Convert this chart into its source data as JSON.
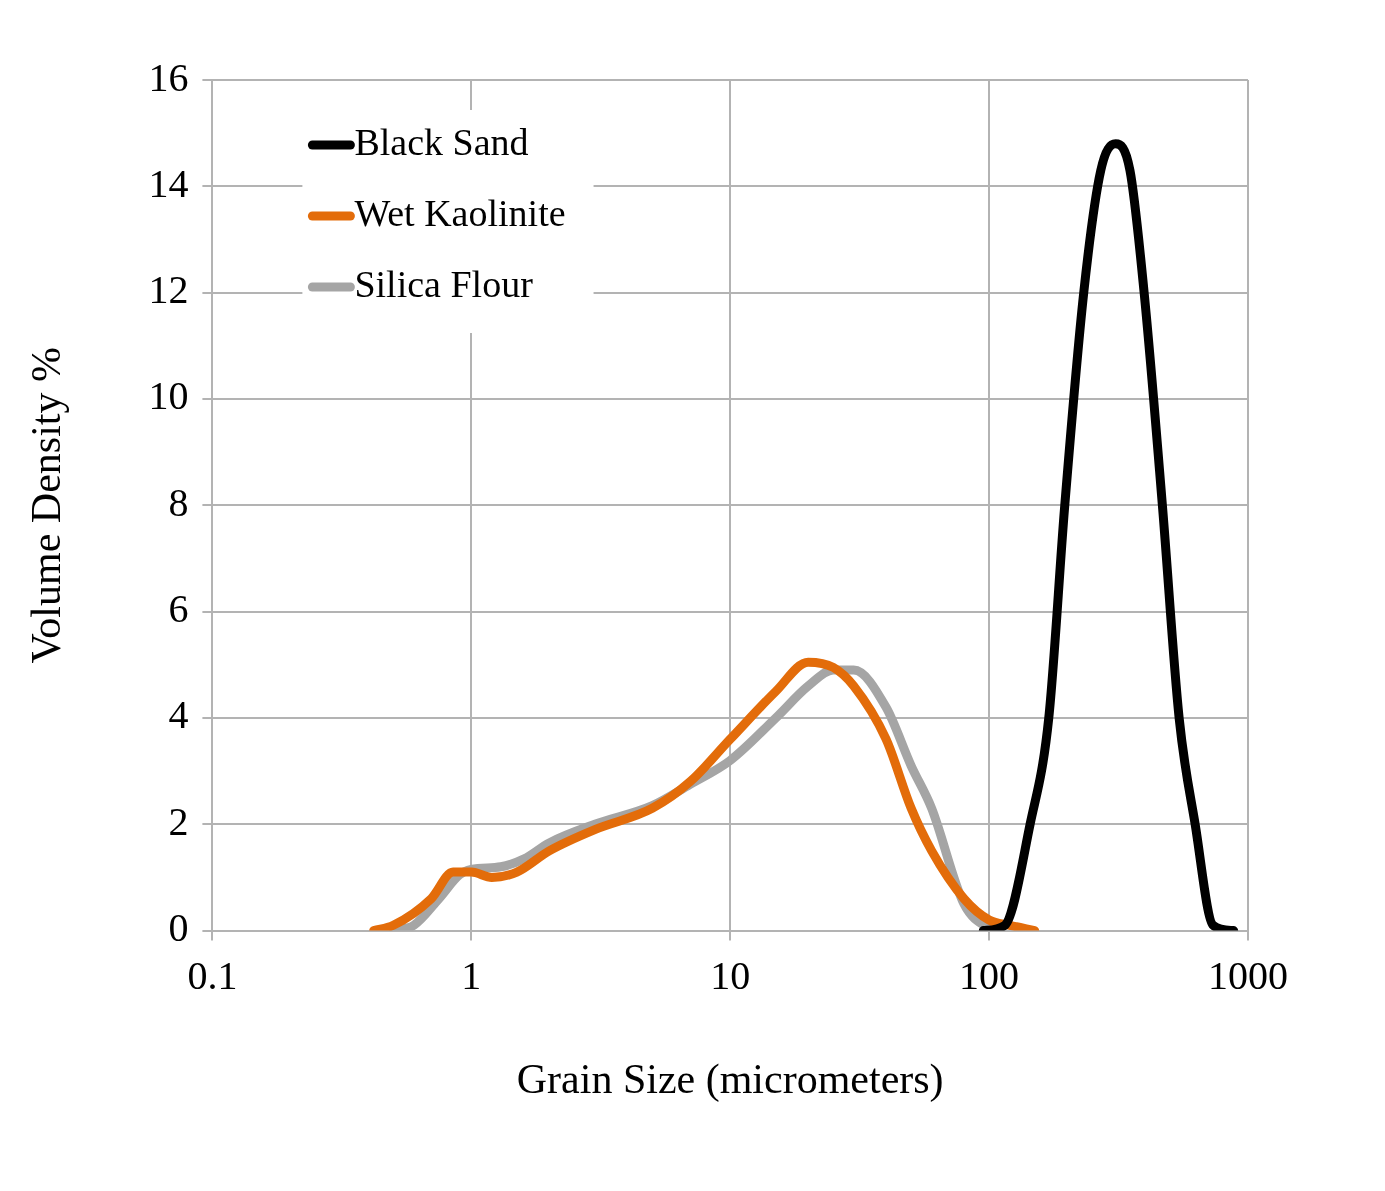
{
  "chart_data": {
    "type": "line",
    "xlabel": "Grain Size (micrometers)",
    "ylabel": "Volume Density %",
    "log": "x",
    "xlim": [
      0.1,
      1000
    ],
    "xticks": [
      0.1,
      1,
      10,
      100,
      1000
    ],
    "ylim": [
      0,
      16
    ],
    "yticks": [
      0,
      2,
      4,
      6,
      8,
      10,
      12,
      14,
      16
    ],
    "grid": true,
    "legend": "top left",
    "marker": "none",
    "line_style": "solid",
    "series": [
      {
        "name": "Black Sand",
        "color": "#000000",
        "x": [
          95,
          115,
          144,
          170,
          196,
          232,
          270,
          308,
          350,
          397,
          467,
          542,
          625,
          733,
          880
        ],
        "values": [
          0,
          0.1,
          2,
          4,
          8,
          12,
          14.3,
          14.8,
          14.3,
          12,
          8,
          4,
          2,
          0.1,
          0
        ]
      },
      {
        "name": "Wet Kaolinite",
        "color": "#e36c0a",
        "x": [
          0.42,
          0.5,
          0.7,
          0.85,
          1,
          1.2,
          1.5,
          2,
          3,
          5,
          7,
          10,
          15,
          20,
          25,
          30,
          40,
          50,
          60,
          80,
          100,
          120,
          150
        ],
        "values": [
          0,
          0.1,
          0.6,
          1.1,
          1.1,
          1,
          1.1,
          1.5,
          1.9,
          2.3,
          2.8,
          3.6,
          4.5,
          5.05,
          4.95,
          4.6,
          3.6,
          2.3,
          1.5,
          0.6,
          0.2,
          0.1,
          0
        ]
      },
      {
        "name": "Silica Flour",
        "color": "#a5a5a5",
        "x": [
          0.5,
          0.6,
          0.75,
          0.9,
          1,
          1.3,
          1.6,
          2,
          3,
          5,
          7,
          10,
          15,
          20,
          25,
          30,
          40,
          50,
          60,
          80,
          100,
          110
        ],
        "values": [
          0,
          0.1,
          0.6,
          1.05,
          1.15,
          1.2,
          1.35,
          1.65,
          2,
          2.35,
          2.75,
          3.2,
          4,
          4.6,
          4.9,
          4.9,
          4.2,
          3.1,
          2.3,
          0.5,
          0.05,
          0
        ]
      }
    ]
  }
}
